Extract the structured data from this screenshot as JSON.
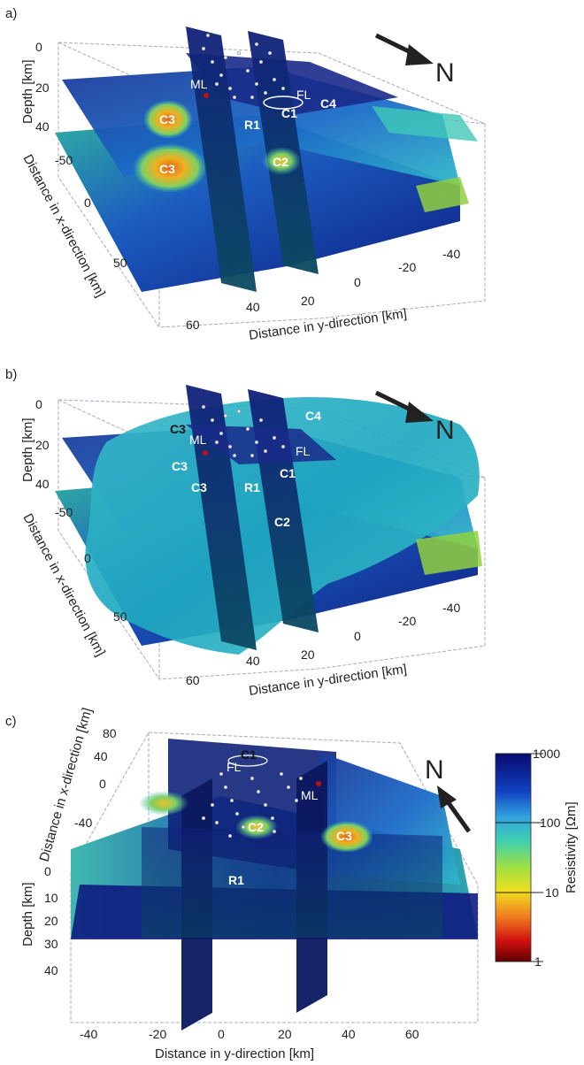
{
  "panels": {
    "a": {
      "letter": "a)",
      "depth_label": "Depth [km]",
      "x_label": "Distance in x-direction [km]",
      "y_label": "Distance in y-direction [km]",
      "depth_ticks": [
        "0",
        "20",
        "40"
      ],
      "x_ticks": [
        "-50",
        "0",
        "50"
      ],
      "y_ticks": [
        "60",
        "40",
        "20",
        "0",
        "-20",
        "-40"
      ],
      "north": "N",
      "features": {
        "ML": "ML",
        "FL": "FL",
        "C1": "C1",
        "C2": "C2",
        "C3a": "C3",
        "C3b": "C3",
        "C4": "C4",
        "R1": "R1"
      }
    },
    "b": {
      "letter": "b)",
      "depth_label": "Depth [km]",
      "x_label": "Distance in x-direction [km]",
      "y_label": "Distance in y-direction [km]",
      "depth_ticks": [
        "0",
        "20",
        "40"
      ],
      "x_ticks": [
        "-50",
        "0",
        "50"
      ],
      "y_ticks": [
        "60",
        "40",
        "20",
        "0",
        "-20",
        "-40"
      ],
      "north": "N",
      "features": {
        "C3a": "C3",
        "ML": "ML",
        "C3b": "C3",
        "C3c": "C3",
        "R1": "R1",
        "C1": "C1",
        "FL": "FL",
        "C2": "C2",
        "C4": "C4"
      }
    },
    "c": {
      "letter": "c)",
      "x_label": "Distance in x-direction [km]",
      "depth_label": "Depth [km]",
      "y_label": "Distance in y-direction [km]",
      "x_ticks": [
        "80",
        "40",
        "0",
        "-40"
      ],
      "depth_ticks": [
        "0",
        "10",
        "20",
        "30",
        "40"
      ],
      "y_ticks": [
        "-40",
        "-20",
        "0",
        "20",
        "40",
        "60"
      ],
      "north": "N",
      "features": {
        "C1": "C1",
        "FL": "FL",
        "ML": "ML",
        "C2": "C2",
        "C3": "C3",
        "R1": "R1"
      }
    }
  },
  "colorbar": {
    "label": "Resistivity [Ωm]",
    "ticks": [
      "1000",
      "100",
      "10",
      "1"
    ],
    "colors": [
      "#0a0a70",
      "#1040c0",
      "#30a0e0",
      "#40d0b0",
      "#a0e040",
      "#f0e020",
      "#f08020",
      "#d01010",
      "#600000"
    ]
  }
}
